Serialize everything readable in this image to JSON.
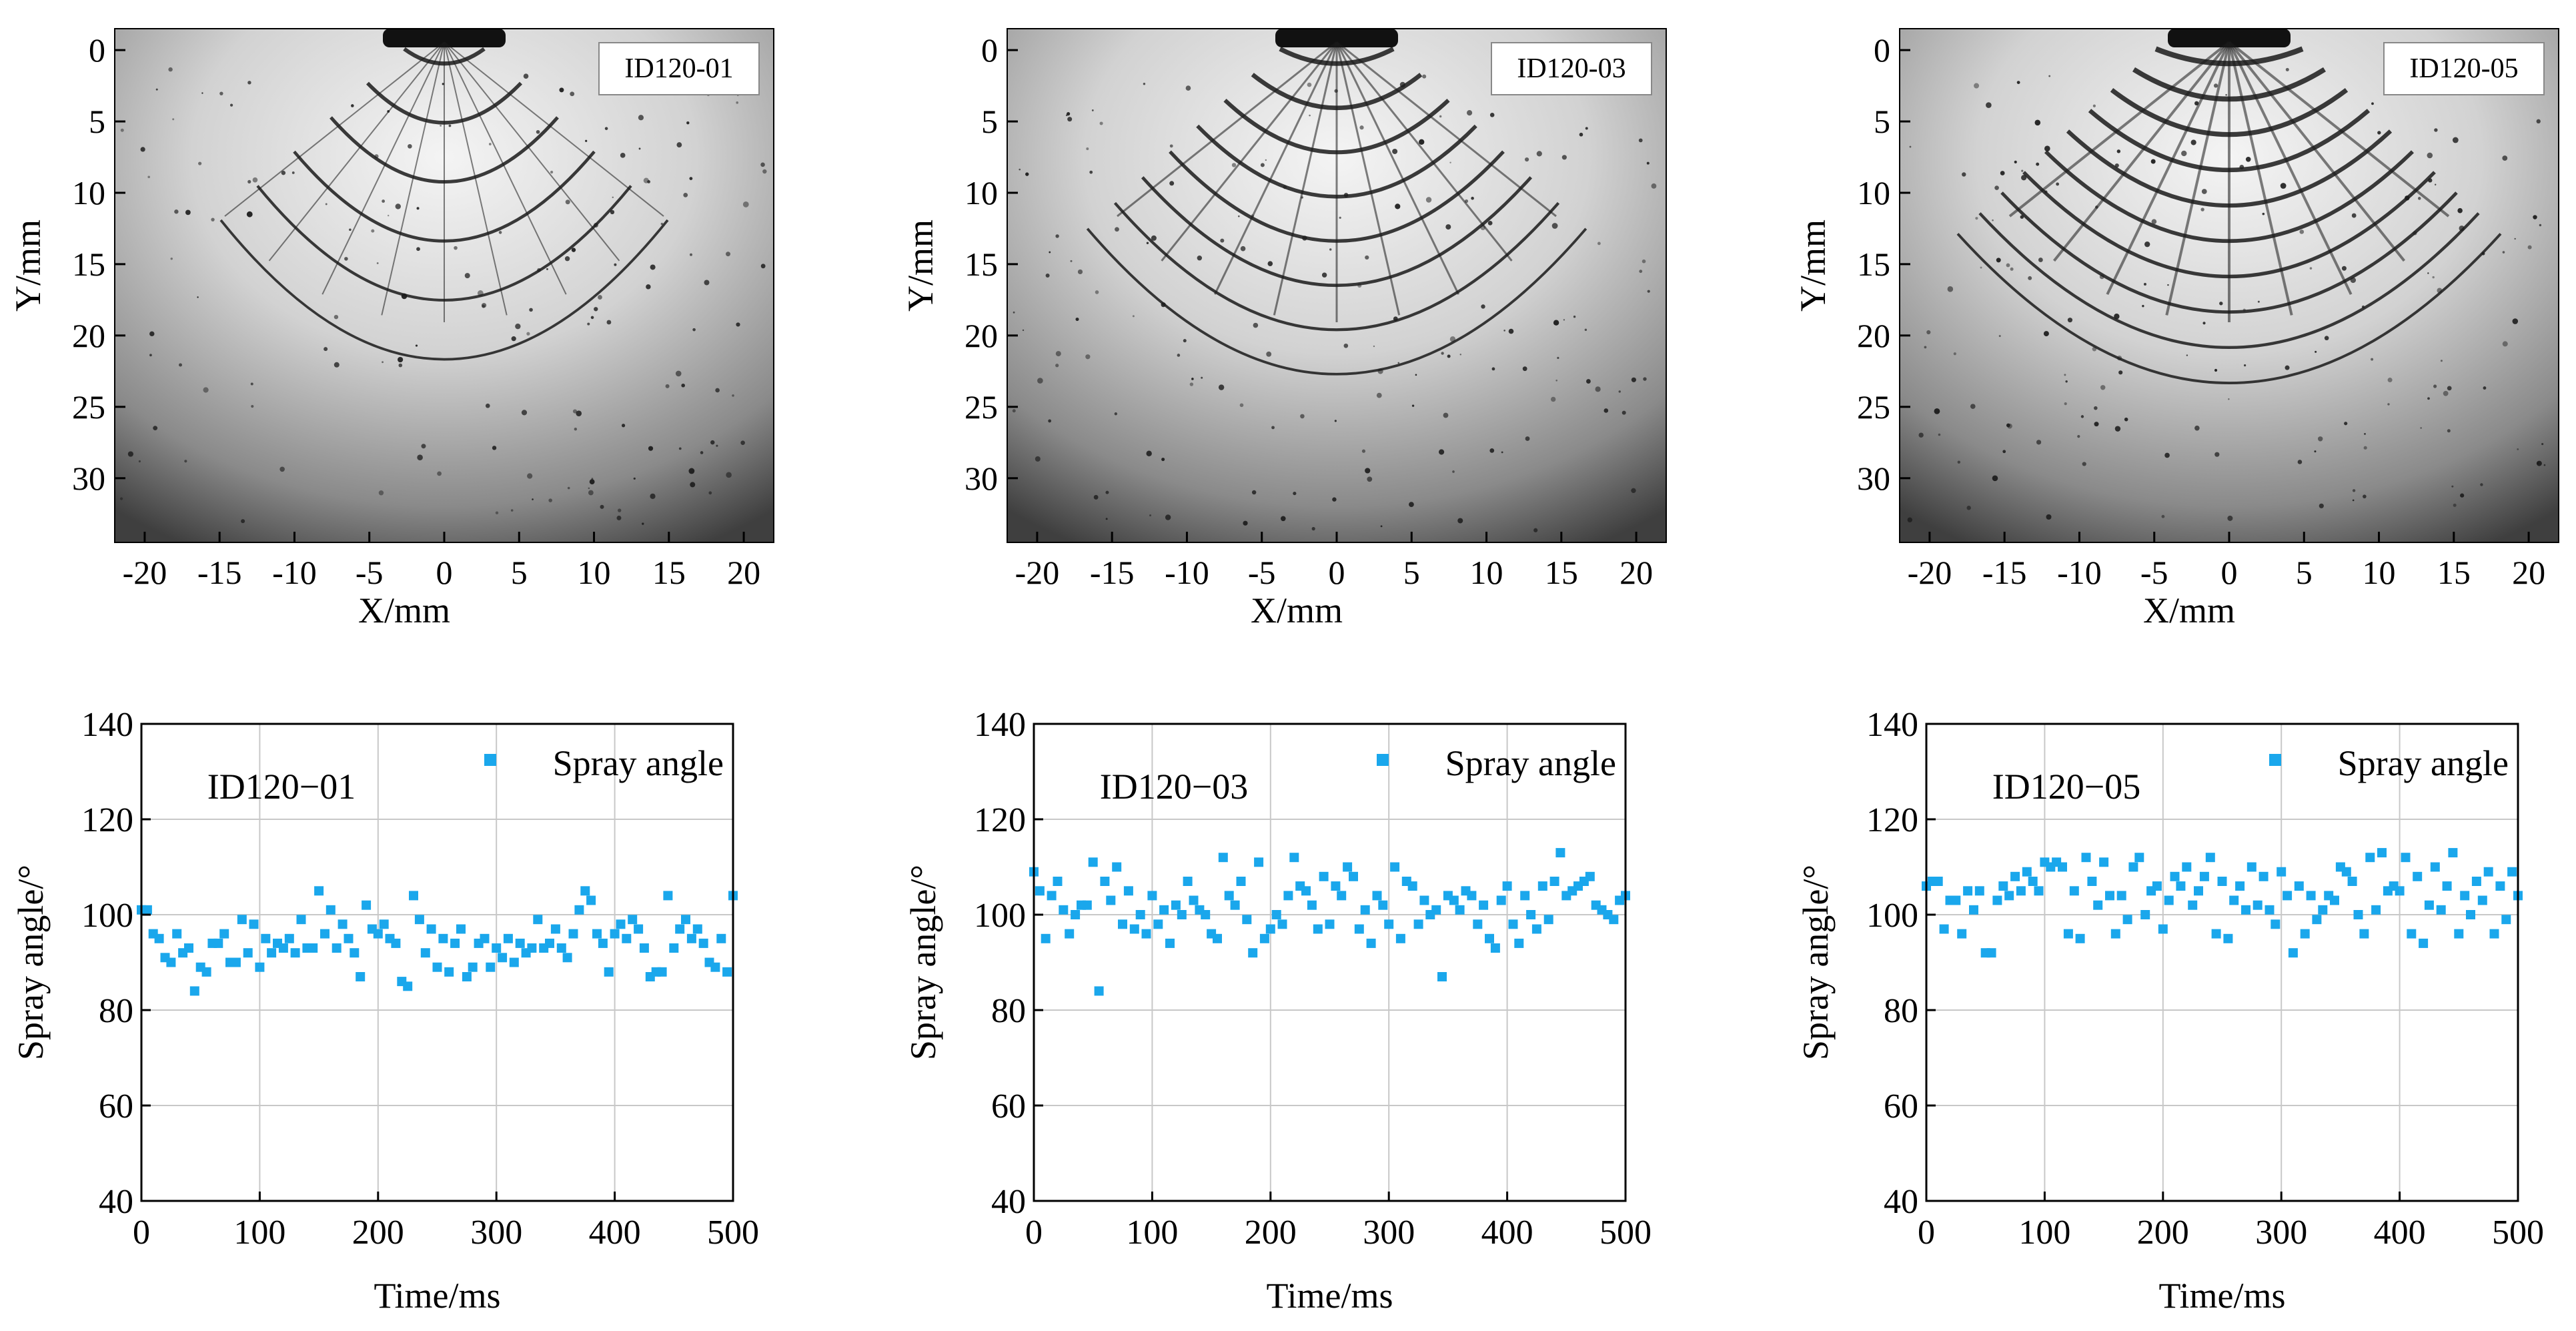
{
  "images": [
    {
      "label": "ID120-01",
      "xlabel": "X/mm",
      "ylabel": "Y/mm",
      "xticks": [
        "-20",
        "-15",
        "-10",
        "-5",
        "0",
        "5",
        "10",
        "15",
        "20"
      ],
      "yticks": [
        "0",
        "5",
        "10",
        "15",
        "20",
        "25",
        "30"
      ]
    },
    {
      "label": "ID120-03",
      "xlabel": "X/mm",
      "ylabel": "Y/mm",
      "xticks": [
        "-20",
        "-15",
        "-10",
        "-5",
        "0",
        "5",
        "10",
        "15",
        "20"
      ],
      "yticks": [
        "0",
        "5",
        "10",
        "15",
        "20",
        "25",
        "30"
      ]
    },
    {
      "label": "ID120-05",
      "xlabel": "X/mm",
      "ylabel": "Y/mm",
      "xticks": [
        "-20",
        "-15",
        "-10",
        "-5",
        "0",
        "5",
        "10",
        "15",
        "20"
      ],
      "yticks": [
        "0",
        "5",
        "10",
        "15",
        "20",
        "25",
        "30"
      ]
    }
  ],
  "colors": {
    "series": "#1aa7ec",
    "grid": "#c8c8c8",
    "axis": "#000000",
    "image_bg": "#bdbdbd",
    "ligament": "#1a1a1a"
  },
  "chart_data": [
    {
      "type": "scatter",
      "title": "ID120−01",
      "xlabel": "Time/ms",
      "ylabel": "Spray angle/°",
      "xlim": [
        0,
        500
      ],
      "ylim": [
        40,
        140
      ],
      "xticks": [
        0,
        100,
        200,
        300,
        400,
        500
      ],
      "yticks": [
        40,
        60,
        80,
        100,
        120,
        140
      ],
      "legend": "top-right",
      "grid": true,
      "series": [
        {
          "name": "Spray angle",
          "x": [
            0,
            5,
            10,
            15,
            20,
            25,
            30,
            35,
            40,
            45,
            50,
            55,
            60,
            65,
            70,
            75,
            80,
            85,
            90,
            95,
            100,
            105,
            110,
            115,
            120,
            125,
            130,
            135,
            140,
            145,
            150,
            155,
            160,
            165,
            170,
            175,
            180,
            185,
            190,
            195,
            200,
            205,
            210,
            215,
            220,
            225,
            230,
            235,
            240,
            245,
            250,
            255,
            260,
            265,
            270,
            275,
            280,
            285,
            290,
            295,
            300,
            305,
            310,
            315,
            320,
            325,
            330,
            335,
            340,
            345,
            350,
            355,
            360,
            365,
            370,
            375,
            380,
            385,
            390,
            395,
            400,
            405,
            410,
            415,
            420,
            425,
            430,
            435,
            440,
            445,
            450,
            455,
            460,
            465,
            470,
            475,
            480,
            485,
            490,
            495,
            500
          ],
          "y": [
            101,
            101,
            96,
            95,
            91,
            90,
            96,
            92,
            93,
            84,
            89,
            88,
            94,
            94,
            96,
            90,
            90,
            99,
            92,
            98,
            89,
            95,
            92,
            94,
            93,
            95,
            92,
            99,
            93,
            93,
            105,
            96,
            101,
            93,
            98,
            95,
            92,
            87,
            102,
            97,
            96,
            98,
            95,
            94,
            86,
            85,
            104,
            99,
            92,
            97,
            89,
            95,
            88,
            94,
            97,
            87,
            89,
            94,
            95,
            89,
            93,
            91,
            95,
            90,
            94,
            92,
            93,
            99,
            93,
            94,
            97,
            93,
            91,
            96,
            101,
            105,
            103,
            96,
            94,
            88,
            96,
            98,
            95,
            99,
            97,
            93,
            87,
            88,
            88,
            104,
            93,
            97,
            99,
            95,
            97,
            94,
            90,
            89,
            95,
            88,
            104
          ]
        }
      ]
    },
    {
      "type": "scatter",
      "title": "ID120−03",
      "xlabel": "Time/ms",
      "ylabel": "Spray angle/°",
      "xlim": [
        0,
        500
      ],
      "ylim": [
        40,
        140
      ],
      "xticks": [
        0,
        100,
        200,
        300,
        400,
        500
      ],
      "yticks": [
        40,
        60,
        80,
        100,
        120,
        140
      ],
      "legend": "top-right",
      "grid": true,
      "series": [
        {
          "name": "Spray angle",
          "x": [
            0,
            5,
            10,
            15,
            20,
            25,
            30,
            35,
            40,
            45,
            50,
            55,
            60,
            65,
            70,
            75,
            80,
            85,
            90,
            95,
            100,
            105,
            110,
            115,
            120,
            125,
            130,
            135,
            140,
            145,
            150,
            155,
            160,
            165,
            170,
            175,
            180,
            185,
            190,
            195,
            200,
            205,
            210,
            215,
            220,
            225,
            230,
            235,
            240,
            245,
            250,
            255,
            260,
            265,
            270,
            275,
            280,
            285,
            290,
            295,
            300,
            305,
            310,
            315,
            320,
            325,
            330,
            335,
            340,
            345,
            350,
            355,
            360,
            365,
            370,
            375,
            380,
            385,
            390,
            395,
            400,
            405,
            410,
            415,
            420,
            425,
            430,
            435,
            440,
            445,
            450,
            455,
            460,
            465,
            470,
            475,
            480,
            485,
            490,
            495,
            500
          ],
          "y": [
            109,
            105,
            95,
            104,
            107,
            101,
            96,
            100,
            102,
            102,
            111,
            84,
            107,
            103,
            110,
            98,
            105,
            97,
            100,
            96,
            104,
            98,
            101,
            94,
            102,
            100,
            107,
            103,
            101,
            100,
            96,
            95,
            112,
            104,
            102,
            107,
            99,
            92,
            111,
            95,
            97,
            100,
            98,
            104,
            112,
            106,
            105,
            102,
            97,
            108,
            98,
            106,
            104,
            110,
            108,
            97,
            101,
            94,
            104,
            102,
            98,
            110,
            95,
            107,
            106,
            98,
            103,
            100,
            101,
            87,
            104,
            103,
            101,
            105,
            104,
            98,
            102,
            95,
            93,
            103,
            106,
            98,
            94,
            104,
            100,
            97,
            106,
            99,
            107,
            113,
            104,
            105,
            106,
            107,
            108,
            102,
            101,
            100,
            99,
            103,
            104
          ]
        }
      ]
    },
    {
      "type": "scatter",
      "title": "ID120−05",
      "xlabel": "Time/ms",
      "ylabel": "Spray angle/°",
      "xlim": [
        0,
        500
      ],
      "ylim": [
        40,
        140
      ],
      "xticks": [
        0,
        100,
        200,
        300,
        400,
        500
      ],
      "yticks": [
        40,
        60,
        80,
        100,
        120,
        140
      ],
      "legend": "top-right",
      "grid": true,
      "series": [
        {
          "name": "Spray angle",
          "x": [
            0,
            5,
            10,
            15,
            20,
            25,
            30,
            35,
            40,
            45,
            50,
            55,
            60,
            65,
            70,
            75,
            80,
            85,
            90,
            95,
            100,
            105,
            110,
            115,
            120,
            125,
            130,
            135,
            140,
            145,
            150,
            155,
            160,
            165,
            170,
            175,
            180,
            185,
            190,
            195,
            200,
            205,
            210,
            215,
            220,
            225,
            230,
            235,
            240,
            245,
            250,
            255,
            260,
            265,
            270,
            275,
            280,
            285,
            290,
            295,
            300,
            305,
            310,
            315,
            320,
            325,
            330,
            335,
            340,
            345,
            350,
            355,
            360,
            365,
            370,
            375,
            380,
            385,
            390,
            395,
            400,
            405,
            410,
            415,
            420,
            425,
            430,
            435,
            440,
            445,
            450,
            455,
            460,
            465,
            470,
            475,
            480,
            485,
            490,
            495,
            500
          ],
          "y": [
            106,
            107,
            107,
            97,
            103,
            103,
            96,
            105,
            101,
            105,
            92,
            92,
            103,
            106,
            104,
            108,
            105,
            109,
            107,
            105,
            111,
            110,
            111,
            110,
            96,
            105,
            95,
            112,
            107,
            102,
            111,
            104,
            96,
            104,
            99,
            110,
            112,
            100,
            105,
            106,
            97,
            103,
            108,
            106,
            110,
            102,
            105,
            108,
            112,
            96,
            107,
            95,
            103,
            106,
            101,
            110,
            102,
            108,
            101,
            98,
            109,
            104,
            92,
            106,
            96,
            104,
            99,
            101,
            104,
            103,
            110,
            109,
            107,
            100,
            96,
            112,
            101,
            113,
            105,
            106,
            105,
            112,
            96,
            108,
            94,
            102,
            110,
            101,
            106,
            113,
            96,
            104,
            100,
            107,
            103,
            109,
            96,
            106,
            99,
            109,
            104
          ]
        }
      ]
    }
  ]
}
